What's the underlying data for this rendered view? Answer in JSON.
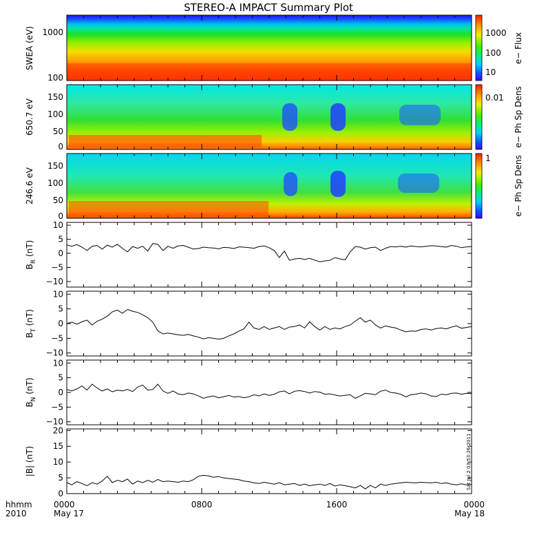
{
  "chart_data": {
    "title": "STEREO-A IMPACT Summary Plot",
    "footer": {
      "format": "hhmm",
      "year": "2010"
    },
    "x_axis": {
      "range_hours": [
        0,
        24
      ],
      "ticks": [
        {
          "hour": 0,
          "label": "0000",
          "date": "May 17"
        },
        {
          "hour": 8,
          "label": "0800",
          "date": ""
        },
        {
          "hour": 16,
          "label": "1600",
          "date": ""
        },
        {
          "hour": 24,
          "label": "0000",
          "date": "May 18"
        }
      ],
      "minor_step_hours": 1
    },
    "stamp": "Sat Jul  2 03:53:26 2011",
    "spectrograms": [
      {
        "type": "heatmap",
        "ylabel": "SWEA (eV)",
        "colorbar_label": "e− Flux",
        "colorbar_ticks": [
          "1000",
          "100",
          "10"
        ],
        "yticks": [
          "1000",
          "100"
        ],
        "ylim": [
          90,
          2000
        ],
        "scale": "log"
      },
      {
        "type": "heatmap",
        "ylabel": "650.7 eV",
        "colorbar_label": "e− Ph Sp Dens",
        "colorbar_ticks": [
          "0.01"
        ],
        "yticks": [
          "150",
          "100",
          "50",
          "0"
        ],
        "ylim": [
          -10,
          180
        ],
        "scale": "linear"
      },
      {
        "type": "heatmap",
        "ylabel": "246.6 eV",
        "colorbar_label": "e− Ph Sp Dens",
        "colorbar_ticks": [
          "1"
        ],
        "yticks": [
          "150",
          "100",
          "50",
          "0"
        ],
        "ylim": [
          -10,
          180
        ],
        "scale": "linear"
      }
    ],
    "line_panels": [
      {
        "type": "line",
        "ylabel": "B",
        "sub": "R",
        "unit": " (nT)",
        "ylim": [
          -12,
          11
        ],
        "yticks": [
          "10",
          "5",
          "0",
          "−5",
          "−10"
        ],
        "x": [
          0,
          0.3,
          0.6,
          0.9,
          1.2,
          1.5,
          1.8,
          2.1,
          2.4,
          2.7,
          3.0,
          3.3,
          3.6,
          3.9,
          4.2,
          4.5,
          4.8,
          5.1,
          5.4,
          5.7,
          6.0,
          6.3,
          6.6,
          6.9,
          7.2,
          7.5,
          7.8,
          8.1,
          8.4,
          8.7,
          9.0,
          9.3,
          9.6,
          9.9,
          10.2,
          10.5,
          10.8,
          11.1,
          11.4,
          11.7,
          12.0,
          12.3,
          12.6,
          12.9,
          13.2,
          13.5,
          13.8,
          14.1,
          14.4,
          14.7,
          15.0,
          15.3,
          15.6,
          15.9,
          16.2,
          16.5,
          16.8,
          17.1,
          17.4,
          17.7,
          18.0,
          18.3,
          18.6,
          18.9,
          19.2,
          19.5,
          19.8,
          20.1,
          20.4,
          20.7,
          21.0,
          21.3,
          21.6,
          21.9,
          22.2,
          22.5,
          22.8,
          23.1,
          23.4,
          23.7,
          24.0
        ],
        "values": [
          3,
          2.5,
          3.1,
          2.2,
          1.0,
          2.5,
          2.8,
          1.5,
          2.9,
          2.2,
          3.2,
          1.8,
          0.5,
          2.4,
          1.8,
          2.5,
          0.8,
          3.5,
          3.2,
          1.0,
          2.5,
          1.8,
          2.6,
          2.8,
          2.2,
          1.5,
          1.7,
          2.2,
          2.0,
          1.9,
          1.6,
          2.1,
          2.0,
          1.7,
          2.3,
          2.2,
          2.0,
          1.8,
          2.4,
          2.6,
          2.0,
          1.0,
          -1.5,
          0.8,
          -2.5,
          -2.0,
          -1.8,
          -2.2,
          -1.8,
          -2.4,
          -3.0,
          -2.7,
          -2.5,
          -1.5,
          -2.0,
          -2.3,
          0.5,
          2.4,
          2.2,
          1.5,
          2.0,
          2.2,
          1.0,
          1.8,
          2.4,
          2.3,
          2.5,
          2.2,
          2.6,
          2.4,
          2.3,
          2.5,
          2.7,
          2.6,
          2.4,
          2.2,
          2.8,
          2.5,
          2.0,
          2.3,
          2.4
        ]
      },
      {
        "type": "line",
        "ylabel": "B",
        "sub": "T",
        "unit": " (nT)",
        "ylim": [
          -11,
          11
        ],
        "yticks": [
          "10",
          "5",
          "0",
          "−5",
          "−10"
        ],
        "x": [
          0,
          0.3,
          0.6,
          0.9,
          1.2,
          1.5,
          1.8,
          2.1,
          2.4,
          2.7,
          3.0,
          3.3,
          3.6,
          3.9,
          4.2,
          4.5,
          4.8,
          5.1,
          5.4,
          5.7,
          6.0,
          6.3,
          6.6,
          6.9,
          7.2,
          7.5,
          7.8,
          8.1,
          8.4,
          8.7,
          9.0,
          9.3,
          9.6,
          9.9,
          10.2,
          10.5,
          10.8,
          11.1,
          11.4,
          11.7,
          12.0,
          12.3,
          12.6,
          12.9,
          13.2,
          13.5,
          13.8,
          14.1,
          14.4,
          14.7,
          15.0,
          15.3,
          15.6,
          15.9,
          16.2,
          16.5,
          16.8,
          17.1,
          17.4,
          17.7,
          18.0,
          18.3,
          18.6,
          18.9,
          19.2,
          19.5,
          19.8,
          20.1,
          20.4,
          20.7,
          21.0,
          21.3,
          21.6,
          21.9,
          22.2,
          22.5,
          22.8,
          23.1,
          23.4,
          23.7,
          24.0
        ],
        "values": [
          0,
          0.5,
          -0.2,
          0.6,
          1.2,
          -0.5,
          0.8,
          1.5,
          2.5,
          4.0,
          4.6,
          3.5,
          4.8,
          4.2,
          3.8,
          3.0,
          2.0,
          0.5,
          -2.5,
          -3.5,
          -3.2,
          -3.5,
          -3.8,
          -4.0,
          -3.7,
          -4.2,
          -4.6,
          -5.2,
          -4.8,
          -5.0,
          -5.3,
          -5.0,
          -4.2,
          -3.5,
          -2.6,
          -1.8,
          0.5,
          -1.5,
          -2.0,
          -1.0,
          -2.0,
          -1.5,
          -1.0,
          -2.0,
          -1.2,
          -1.0,
          -0.5,
          -1.5,
          0.6,
          -1.0,
          -2.2,
          -1.0,
          -2.0,
          -1.5,
          -1.8,
          -1.0,
          -0.5,
          0.8,
          2.0,
          0.5,
          1.2,
          -0.5,
          -1.5,
          -0.8,
          -1.2,
          -1.5,
          -2.2,
          -2.8,
          -2.5,
          -2.6,
          -2.0,
          -1.8,
          -2.2,
          -1.7,
          -1.5,
          -1.8,
          -1.2,
          -0.8,
          -1.6,
          -1.3,
          -1.0
        ]
      },
      {
        "type": "line",
        "ylabel": "B",
        "sub": "N",
        "unit": " (nT)",
        "ylim": [
          -11,
          11
        ],
        "yticks": [
          "10",
          "5",
          "0",
          "−5",
          "−10"
        ],
        "x": [
          0,
          0.3,
          0.6,
          0.9,
          1.2,
          1.5,
          1.8,
          2.1,
          2.4,
          2.7,
          3.0,
          3.3,
          3.6,
          3.9,
          4.2,
          4.5,
          4.8,
          5.1,
          5.4,
          5.7,
          6.0,
          6.3,
          6.6,
          6.9,
          7.2,
          7.5,
          7.8,
          8.1,
          8.4,
          8.7,
          9.0,
          9.3,
          9.6,
          9.9,
          10.2,
          10.5,
          10.8,
          11.1,
          11.4,
          11.7,
          12.0,
          12.3,
          12.6,
          12.9,
          13.2,
          13.5,
          13.8,
          14.1,
          14.4,
          14.7,
          15.0,
          15.3,
          15.6,
          15.9,
          16.2,
          16.5,
          16.8,
          17.1,
          17.4,
          17.7,
          18.0,
          18.3,
          18.6,
          18.9,
          19.2,
          19.5,
          19.8,
          20.1,
          20.4,
          20.7,
          21.0,
          21.3,
          21.6,
          21.9,
          22.2,
          22.5,
          22.8,
          23.1,
          23.4,
          23.7,
          24.0
        ],
        "values": [
          1,
          0.5,
          1.2,
          2.2,
          0.8,
          2.8,
          1.5,
          0.5,
          1.2,
          0.2,
          0.8,
          0.5,
          1.0,
          0.3,
          1.8,
          2.5,
          0.8,
          1.0,
          2.8,
          0.5,
          -0.3,
          0.5,
          -0.5,
          -0.8,
          -0.2,
          -0.5,
          -1.2,
          -2.0,
          -1.5,
          -1.2,
          -1.8,
          -1.5,
          -1.0,
          -1.6,
          -1.4,
          -1.8,
          -1.5,
          -0.8,
          -1.2,
          -0.5,
          -1.0,
          -0.6,
          0.2,
          0.5,
          -0.5,
          0.4,
          0.6,
          0.3,
          -0.2,
          0.3,
          0.1,
          -0.6,
          -0.5,
          -0.9,
          -1.2,
          -1.0,
          -0.8,
          -2.0,
          -1.2,
          -0.3,
          -0.5,
          -0.8,
          0.4,
          0.8,
          0.0,
          -0.2,
          -0.6,
          -1.5,
          -0.8,
          -0.6,
          -0.2,
          -0.5,
          -1.2,
          -1.4,
          -0.6,
          -0.8,
          -0.3,
          -0.2,
          -0.6,
          -0.3,
          -0.4
        ]
      },
      {
        "type": "line",
        "ylabel": "|B| (nT)",
        "sub": "",
        "unit": "",
        "ylim": [
          0,
          20.5
        ],
        "yticks": [
          "20",
          "15",
          "10",
          "5",
          "0"
        ],
        "x": [
          0,
          0.3,
          0.6,
          0.9,
          1.2,
          1.5,
          1.8,
          2.1,
          2.4,
          2.7,
          3.0,
          3.3,
          3.6,
          3.9,
          4.2,
          4.5,
          4.8,
          5.1,
          5.4,
          5.7,
          6.0,
          6.3,
          6.6,
          6.9,
          7.2,
          7.5,
          7.8,
          8.1,
          8.4,
          8.7,
          9.0,
          9.3,
          9.6,
          9.9,
          10.2,
          10.5,
          10.8,
          11.1,
          11.4,
          11.7,
          12.0,
          12.3,
          12.6,
          12.9,
          13.2,
          13.5,
          13.8,
          14.1,
          14.4,
          14.7,
          15.0,
          15.3,
          15.6,
          15.9,
          16.2,
          16.5,
          16.8,
          17.1,
          17.4,
          17.7,
          18.0,
          18.3,
          18.6,
          18.9,
          19.2,
          19.5,
          19.8,
          20.1,
          20.4,
          20.7,
          21.0,
          21.3,
          21.6,
          21.9,
          22.2,
          22.5,
          22.8,
          23.1,
          23.4,
          23.7,
          24.0
        ],
        "values": [
          3.5,
          2.8,
          3.8,
          3.2,
          2.5,
          3.5,
          3.0,
          4.0,
          5.5,
          3.5,
          4.2,
          3.8,
          4.6,
          3.0,
          4.0,
          3.5,
          4.2,
          3.6,
          4.5,
          3.8,
          4.0,
          3.8,
          3.6,
          4.0,
          3.8,
          4.4,
          5.5,
          5.8,
          5.6,
          5.2,
          5.4,
          5.0,
          4.8,
          4.6,
          4.4,
          4.0,
          3.8,
          3.4,
          3.2,
          3.6,
          3.3,
          3.0,
          3.5,
          2.8,
          3.0,
          3.2,
          2.6,
          3.0,
          2.5,
          2.8,
          3.0,
          2.6,
          3.2,
          2.4,
          2.8,
          2.5,
          2.2,
          1.8,
          2.6,
          1.5,
          2.6,
          1.8,
          3.0,
          2.6,
          3.0,
          3.2,
          3.4,
          3.6,
          3.5,
          3.4,
          3.6,
          3.5,
          3.4,
          3.6,
          3.2,
          3.4,
          3.0,
          2.8,
          3.1,
          2.8,
          2.9
        ]
      }
    ]
  }
}
